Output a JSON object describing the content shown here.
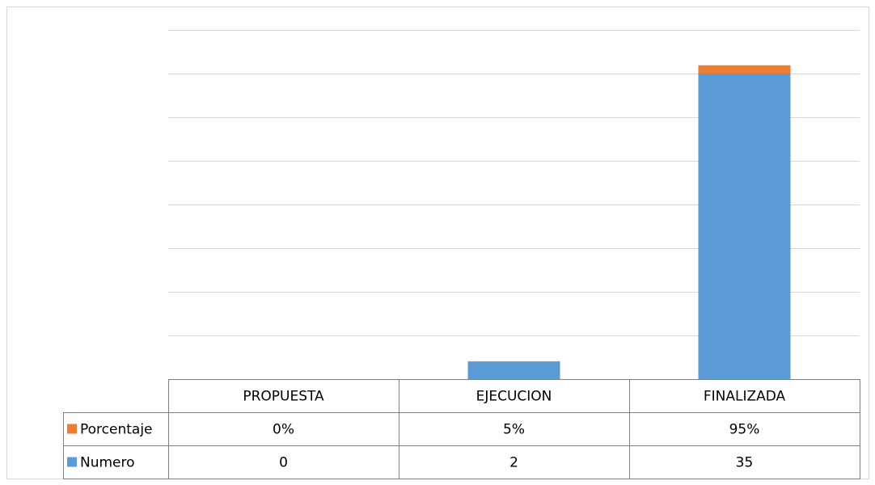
{
  "chart_data": {
    "type": "stacked_bar",
    "categories": [
      "PROPUESTA",
      "EJECUCION",
      "FINALIZADA"
    ],
    "series": [
      {
        "name": "Numero",
        "color": "#5b9bd5",
        "values": [
          0,
          2,
          35
        ]
      },
      {
        "name": "Porcentaje",
        "color": "#ed7d31",
        "values": [
          0,
          0.05,
          0.95
        ],
        "value_labels": [
          "0%",
          "5%",
          "95%"
        ]
      }
    ],
    "ylim": [
      0,
      40
    ],
    "yticks": [
      0,
      5,
      10,
      15,
      20,
      25,
      30,
      35,
      40
    ],
    "grid": true
  }
}
